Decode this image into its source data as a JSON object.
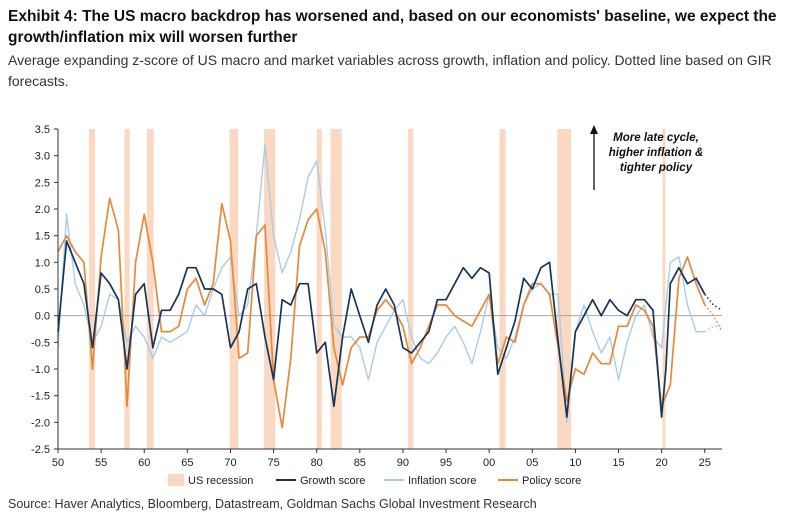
{
  "header": {
    "title": "Exhibit 4: The US macro backdrop has worsened and, based on our economists' baseline, we expect the growth/inflation mix will worsen further",
    "subtitle": "Average expanding z-score of US macro and market variables across growth, inflation and policy. Dotted line based on GIR forecasts."
  },
  "footer": {
    "source": "Source: Haver Analytics, Bloomberg, Datastream, Goldman Sachs Global Investment Research"
  },
  "chart_data": {
    "type": "line",
    "title": "Exhibit 4: The US macro backdrop has worsened and, based on our economists' baseline, we expect the growth/inflation mix will worsen further",
    "xlabel": "",
    "ylabel": "",
    "xlim": [
      1950,
      2027
    ],
    "ylim": [
      -2.5,
      3.5
    ],
    "y_ticks": [
      3.5,
      3.0,
      2.5,
      2.0,
      1.5,
      1.0,
      0.5,
      0.0,
      -0.5,
      -1.0,
      -1.5,
      -2.0,
      -2.5
    ],
    "y_tick_labels": [
      "3.5",
      "3.0",
      "2.5",
      "2.0",
      "1.5",
      "1.0",
      "0.5",
      "0.0",
      "-0.5",
      "-1.0",
      "-1.5",
      "-2.0",
      "-2.5"
    ],
    "x_ticks": [
      1950,
      1955,
      1960,
      1965,
      1970,
      1975,
      1980,
      1985,
      1990,
      1995,
      2000,
      2005,
      2010,
      2015,
      2020,
      2025
    ],
    "x_tick_labels": [
      "50",
      "55",
      "60",
      "65",
      "70",
      "75",
      "80",
      "85",
      "90",
      "95",
      "00",
      "05",
      "10",
      "15",
      "20",
      "25"
    ],
    "annotation": [
      "More late cycle,",
      "higher inflation &",
      "tighter policy"
    ],
    "recessions": [
      [
        1953.6,
        1954.3
      ],
      [
        1957.7,
        1958.3
      ],
      [
        1960.3,
        1961.1
      ],
      [
        1969.9,
        1970.9
      ],
      [
        1973.9,
        1975.2
      ],
      [
        1980.0,
        1980.6
      ],
      [
        1981.6,
        1982.9
      ],
      [
        1990.6,
        1991.2
      ],
      [
        2001.2,
        2001.9
      ],
      [
        2007.9,
        2009.5
      ],
      [
        2020.1,
        2020.4
      ]
    ],
    "legend": [
      {
        "name": "US recession",
        "kind": "area"
      },
      {
        "name": "Growth score",
        "kind": "line"
      },
      {
        "name": "Inflation score",
        "kind": "line"
      },
      {
        "name": "Policy score",
        "kind": "line"
      }
    ],
    "colors": {
      "growth": "#14365d",
      "inflation": "#a9cde6",
      "policy": "#e8893a",
      "recession": "#fbd8c2",
      "zero": "#999999"
    },
    "series": [
      {
        "name": "Growth score",
        "key": "growth",
        "x": [
          1950,
          1951,
          1952,
          1953,
          1954,
          1955,
          1956,
          1957,
          1958,
          1959,
          1960,
          1961,
          1962,
          1963,
          1964,
          1965,
          1966,
          1967,
          1968,
          1969,
          1970,
          1971,
          1972,
          1973,
          1974,
          1975,
          1976,
          1977,
          1978,
          1979,
          1980,
          1981,
          1982,
          1983,
          1984,
          1985,
          1986,
          1987,
          1988,
          1989,
          1990,
          1991,
          1992,
          1993,
          1994,
          1995,
          1996,
          1997,
          1998,
          1999,
          2000,
          2001,
          2002,
          2003,
          2004,
          2005,
          2006,
          2007,
          2008,
          2009,
          2010,
          2011,
          2012,
          2013,
          2014,
          2015,
          2016,
          2017,
          2018,
          2019,
          2020,
          2020.5,
          2021,
          2022,
          2023,
          2024,
          2025
        ],
        "values": [
          -0.3,
          1.4,
          1.0,
          0.6,
          -0.6,
          0.8,
          0.6,
          0.3,
          -1.0,
          0.4,
          0.6,
          -0.6,
          0.1,
          0.1,
          0.4,
          0.9,
          0.9,
          0.5,
          0.5,
          0.4,
          -0.6,
          -0.3,
          0.5,
          0.6,
          -0.4,
          -1.2,
          0.3,
          0.2,
          0.6,
          0.6,
          -0.7,
          -0.5,
          -1.7,
          -0.4,
          0.5,
          0.0,
          -0.5,
          0.2,
          0.5,
          0.2,
          -0.6,
          -0.7,
          -0.5,
          -0.3,
          0.3,
          0.3,
          0.6,
          0.9,
          0.7,
          0.9,
          0.8,
          -1.1,
          -0.6,
          -0.1,
          0.7,
          0.5,
          0.9,
          1.0,
          -0.5,
          -1.9,
          -0.3,
          0.0,
          0.3,
          0.0,
          0.3,
          0.1,
          0.0,
          0.3,
          0.3,
          0.1,
          -1.9,
          -1.0,
          0.6,
          0.9,
          0.6,
          0.7,
          0.4
        ]
      },
      {
        "name": "Inflation score",
        "key": "inflation",
        "x": [
          1950,
          1951,
          1952,
          1953,
          1954,
          1955,
          1956,
          1957,
          1958,
          1959,
          1960,
          1961,
          1962,
          1963,
          1964,
          1965,
          1966,
          1967,
          1968,
          1969,
          1970,
          1971,
          1972,
          1973,
          1974,
          1975,
          1976,
          1977,
          1978,
          1979,
          1980,
          1981,
          1982,
          1983,
          1984,
          1985,
          1986,
          1987,
          1988,
          1989,
          1990,
          1991,
          1992,
          1993,
          1994,
          1995,
          1996,
          1997,
          1998,
          1999,
          2000,
          2001,
          2002,
          2003,
          2004,
          2005,
          2006,
          2007,
          2008,
          2009,
          2010,
          2011,
          2012,
          2013,
          2014,
          2015,
          2016,
          2017,
          2018,
          2019,
          2020,
          2021,
          2022,
          2023,
          2024,
          2025
        ],
        "values": [
          -0.6,
          1.9,
          0.6,
          0.2,
          -0.5,
          -0.2,
          0.4,
          0.3,
          -0.5,
          -0.2,
          -0.4,
          -0.8,
          -0.4,
          -0.5,
          -0.4,
          -0.3,
          0.2,
          0.0,
          0.5,
          0.9,
          1.1,
          0.0,
          0.2,
          1.5,
          3.2,
          1.5,
          0.8,
          1.2,
          1.8,
          2.6,
          2.9,
          1.6,
          -0.2,
          -0.4,
          -0.4,
          -0.6,
          -1.2,
          -0.5,
          -0.2,
          0.1,
          0.3,
          -0.4,
          -0.8,
          -0.9,
          -0.7,
          -0.4,
          -0.2,
          -0.5,
          -0.9,
          -0.3,
          0.4,
          -0.6,
          -0.8,
          -0.4,
          0.2,
          0.5,
          0.6,
          0.4,
          0.4,
          -2.0,
          -0.3,
          0.2,
          -0.3,
          -0.7,
          -0.4,
          -1.2,
          -0.5,
          0.0,
          0.2,
          -0.4,
          -0.6,
          1.0,
          1.1,
          0.2,
          -0.3,
          -0.3
        ]
      },
      {
        "name": "Policy score",
        "key": "policy",
        "x": [
          1950,
          1951,
          1952,
          1953,
          1954,
          1955,
          1956,
          1957,
          1958,
          1959,
          1960,
          1961,
          1962,
          1963,
          1964,
          1965,
          1966,
          1967,
          1968,
          1969,
          1970,
          1971,
          1972,
          1973,
          1974,
          1975,
          1976,
          1977,
          1978,
          1979,
          1980,
          1981,
          1982,
          1983,
          1984,
          1985,
          1986,
          1987,
          1988,
          1989,
          1990,
          1991,
          1992,
          1993,
          1994,
          1995,
          1996,
          1997,
          1998,
          1999,
          2000,
          2001,
          2002,
          2003,
          2004,
          2005,
          2006,
          2007,
          2008,
          2009,
          2010,
          2011,
          2012,
          2013,
          2014,
          2015,
          2016,
          2017,
          2018,
          2019,
          2020,
          2021,
          2022,
          2023,
          2024,
          2025
        ],
        "values": [
          1.2,
          1.5,
          1.2,
          1.0,
          -1.0,
          1.1,
          2.2,
          1.6,
          -1.7,
          1.0,
          1.9,
          1.0,
          -0.3,
          -0.3,
          -0.2,
          0.5,
          0.7,
          0.2,
          0.6,
          2.1,
          1.4,
          -0.8,
          -0.7,
          1.5,
          1.7,
          -1.2,
          -2.1,
          -0.8,
          1.3,
          1.8,
          2.0,
          1.2,
          -0.6,
          -1.3,
          -0.6,
          -0.4,
          -0.4,
          0.1,
          0.3,
          0.1,
          -0.2,
          -0.9,
          -0.6,
          -0.2,
          0.2,
          0.2,
          0.0,
          -0.1,
          -0.2,
          0.1,
          0.4,
          -0.9,
          -0.4,
          -0.5,
          0.2,
          0.6,
          0.6,
          0.4,
          -0.6,
          -1.6,
          -1.0,
          -1.1,
          -0.7,
          -0.9,
          -0.9,
          -0.2,
          -0.2,
          0.2,
          0.1,
          -0.2,
          -1.7,
          -1.3,
          0.7,
          1.1,
          0.6,
          0.2
        ]
      },
      {
        "name": "Growth forecast",
        "key": "growth_forecast",
        "style": "dotted",
        "x": [
          2025,
          2026,
          2027
        ],
        "values": [
          0.4,
          0.2,
          0.1
        ]
      },
      {
        "name": "Inflation forecast",
        "key": "inflation_forecast",
        "style": "dotted",
        "x": [
          2025,
          2026,
          2027
        ],
        "values": [
          -0.3,
          -0.2,
          -0.2
        ]
      },
      {
        "name": "Policy forecast",
        "key": "policy_forecast",
        "style": "dotted",
        "x": [
          2025,
          2026,
          2027
        ],
        "values": [
          0.2,
          0.0,
          -0.3
        ]
      }
    ]
  }
}
